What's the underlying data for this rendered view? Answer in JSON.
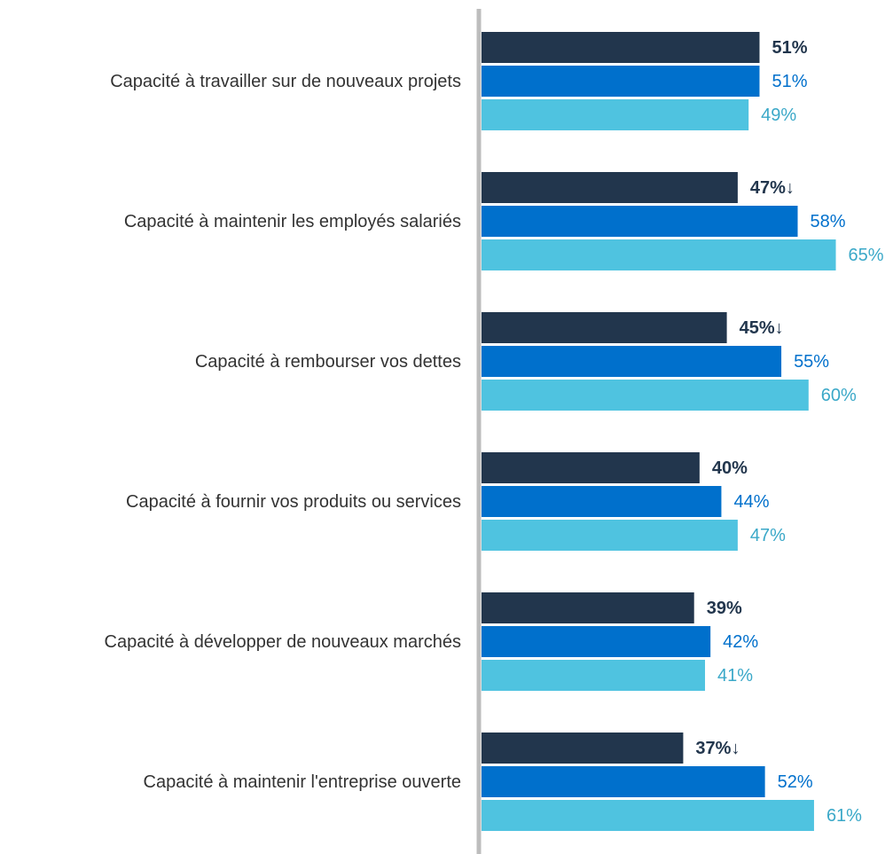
{
  "chart_data": {
    "type": "bar",
    "orientation": "horizontal",
    "categories": [
      "Capacité à travailler sur de nouveaux projets",
      "Capacité à maintenir les employés salariés",
      "Capacité à rembourser vos dettes",
      "Capacité à fournir vos produits ou services",
      "Capacité à développer de nouveaux marchés",
      "Capacité à maintenir l'entreprise ouverte"
    ],
    "series": [
      {
        "color": "#22364d",
        "values": [
          51,
          47,
          45,
          40,
          39,
          37
        ],
        "value_labels": [
          "51%",
          "47%↓",
          "45%↓",
          "40%",
          "39%",
          "37%↓"
        ]
      },
      {
        "color": "#0070cc",
        "values": [
          51,
          58,
          55,
          44,
          42,
          52
        ],
        "value_labels": [
          "51%",
          "58%",
          "55%",
          "44%",
          "42%",
          "52%"
        ]
      },
      {
        "color": "#4fc3e0",
        "values": [
          49,
          65,
          60,
          47,
          41,
          61
        ],
        "value_labels": [
          "49%",
          "65%",
          "60%",
          "47%",
          "41%",
          "61%"
        ]
      }
    ],
    "xlim": [
      0,
      75
    ]
  }
}
